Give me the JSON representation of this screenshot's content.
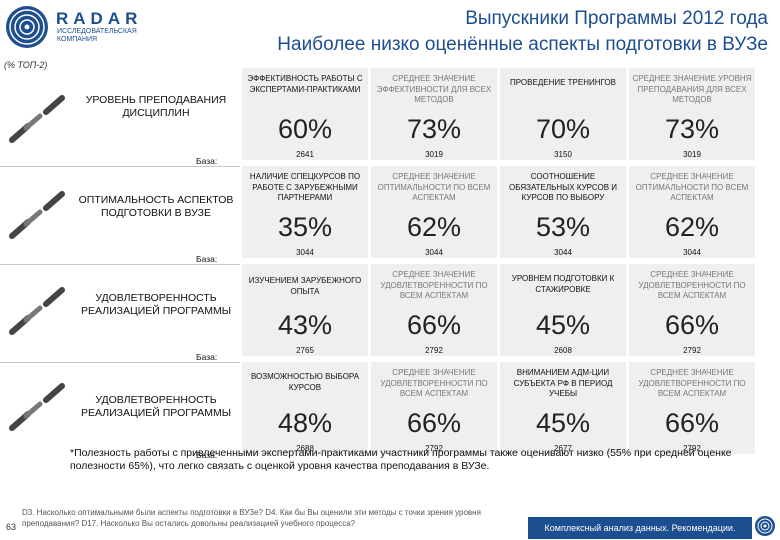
{
  "logo": {
    "word": "RADAR",
    "subtitle": "ИССЛЕДОВАТЕЛЬСКАЯ КОМПАНИЯ"
  },
  "header": {
    "title_line1": "Выпускники Программы 2012 года",
    "title_line2": "Наиболее низко оценённые аспекты подготовки в ВУЗе",
    "subnote": "(% ТОП-2)"
  },
  "base_label": "База:",
  "rows": [
    {
      "label": "УРОВЕНЬ ПРЕПОДАВАНИЯ ДИСЦИПЛИН",
      "cells": [
        {
          "label": "ЭФФЕКТИВНОСТЬ РАБОТЫ С ЭКСПЕРТАМИ-ПРАКТИКАМИ",
          "value": "60%",
          "base": "2641"
        },
        {
          "label": "СРЕДНЕЕ ЗНАЧЕНИЕ ЭФФЕКТИВНОСТИ ДЛЯ ВСЕХ МЕТОДОВ",
          "value": "73%",
          "base": "3019"
        },
        {
          "label": "ПРОВЕДЕНИЕ ТРЕНИНГОВ",
          "value": "70%",
          "base": "3150"
        },
        {
          "label": "СРЕДНЕЕ ЗНАЧЕНИЕ УРОВНЯ ПРЕПОДАВАНИЯ ДЛЯ ВСЕХ МЕТОДОВ",
          "value": "73%",
          "base": "3019"
        }
      ]
    },
    {
      "label": "ОПТИМАЛЬНОСТЬ АСПЕКТОВ ПОДГОТОВКИ В ВУЗЕ",
      "cells": [
        {
          "label": "НАЛИЧИЕ СПЕЦКУРСОВ ПО РАБОТЕ С ЗАРУБЕЖНЫМИ ПАРТНЕРАМИ",
          "value": "35%",
          "base": "3044"
        },
        {
          "label": "СРЕДНЕЕ ЗНАЧЕНИЕ ОПТИМАЛЬНОСТИ ПО ВСЕМ АСПЕКТАМ",
          "value": "62%",
          "base": "3044"
        },
        {
          "label": "СООТНОШЕНИЕ ОБЯЗАТЕЛЬНЫХ КУРСОВ И КУРСОВ ПО ВЫБОРУ",
          "value": "53%",
          "base": "3044"
        },
        {
          "label": "СРЕДНЕЕ ЗНАЧЕНИЕ ОПТИМАЛЬНОСТИ ПО ВСЕМ АСПЕКТАМ",
          "value": "62%",
          "base": "3044"
        }
      ]
    },
    {
      "label": "УДОВЛЕТВОРЕННОСТЬ РЕАЛИЗАЦИЕЙ ПРОГРАММЫ",
      "cells": [
        {
          "label": "ИЗУЧЕНИЕМ ЗАРУБЕЖНОГО ОПЫТА",
          "value": "43%",
          "base": "2765"
        },
        {
          "label": "СРЕДНЕЕ ЗНАЧЕНИЕ УДОВЛЕТВОРЕННОСТИ ПО ВСЕМ АСПЕКТАМ",
          "value": "66%",
          "base": "2792"
        },
        {
          "label": "УРОВНЕМ ПОДГОТОВКИ К СТАЖИРОВКЕ",
          "value": "45%",
          "base": "2608"
        },
        {
          "label": "СРЕДНЕЕ ЗНАЧЕНИЕ УДОВЛЕТВОРЕННОСТИ ПО ВСЕМ АСПЕКТАМ",
          "value": "66%",
          "base": "2792"
        }
      ]
    },
    {
      "label": "УДОВЛЕТВОРЕННОСТЬ РЕАЛИЗАЦИЕЙ ПРОГРАММЫ",
      "cells": [
        {
          "label": "ВОЗМОЖНОСТЬЮ ВЫБОРА КУРСОВ",
          "value": "48%",
          "base": "2688"
        },
        {
          "label": "СРЕДНЕЕ ЗНАЧЕНИЕ УДОВЛЕТВОРЕННОСТИ ПО ВСЕМ АСПЕКТАМ",
          "value": "66%",
          "base": "2792"
        },
        {
          "label": "ВНИМАНИЕМ АДМ-ЦИИ СУБЪЕКТА РФ В ПЕРИОД УЧЕБЫ",
          "value": "45%",
          "base": "2677"
        },
        {
          "label": "СРЕДНЕЕ ЗНАЧЕНИЕ УДОВЛЕТВОРЕННОСТИ ПО ВСЕМ АСПЕКТАМ",
          "value": "66%",
          "base": "2792"
        }
      ]
    }
  ],
  "footnote": "*Полезность работы с привлеченными экспертами-практиками участники программы также оценивают низко (55% при средней оценке полезности 65%), что легко связать с оценкой уровня качества преподавания в ВУЗе.",
  "footer": {
    "page": "63",
    "question": "D3. Насколько оптимальными были аспекты подготовки в ВУЗе? D4. Как бы Вы оценили эти методы с точки зрения уровня преподавания? D17. Насколько Вы остались довольны реализацией учебного процесса?",
    "brand": "Комплексный анализ данных. Рекомендации."
  },
  "colors": {
    "brand_blue": "#1d4e8f",
    "cell_bg": "#efefef"
  }
}
